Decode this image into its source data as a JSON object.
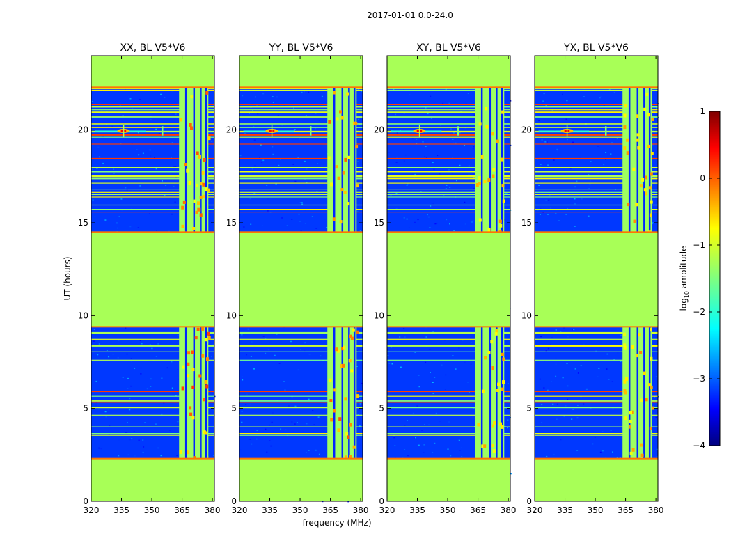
{
  "chart_data": {
    "type": "heatmap",
    "suptitle": "2017-01-01 0.0-24.0",
    "xlabel": "frequency (MHz)",
    "ylabel": "UT (hours)",
    "xlim": [
      320,
      381
    ],
    "ylim": [
      0,
      24
    ],
    "xticks": [
      "320",
      "335",
      "350",
      "365",
      "380"
    ],
    "yticks": [
      "0",
      "5",
      "10",
      "15",
      "20"
    ],
    "panels": [
      {
        "title": "XX, BL V5*V6",
        "polarization": "XX",
        "rfi_strength": 1.0
      },
      {
        "title": "YY, BL V5*V6",
        "polarization": "YY",
        "rfi_strength": 0.9
      },
      {
        "title": "XY, BL V5*V6",
        "polarization": "XY",
        "rfi_strength": 0.6
      },
      {
        "title": "YX, BL V5*V6",
        "polarization": "YX",
        "rfi_strength": 0.65
      }
    ],
    "flagged_time_ranges_hours": [
      [
        0.0,
        2.3
      ],
      [
        9.4,
        14.5
      ],
      [
        22.3,
        24.0
      ]
    ],
    "rfi_band_mhz": [
      363.5,
      378.0
    ],
    "background_log_amplitude": -3.1,
    "flagged_log_amplitude": -1.3,
    "colorbar": {
      "label": "log",
      "label_sub": "10",
      "label_rest": " amplitude",
      "min": -4,
      "max": 1,
      "ticks": [
        "−4",
        "−3",
        "−2",
        "−1",
        "0",
        "1"
      ]
    }
  }
}
